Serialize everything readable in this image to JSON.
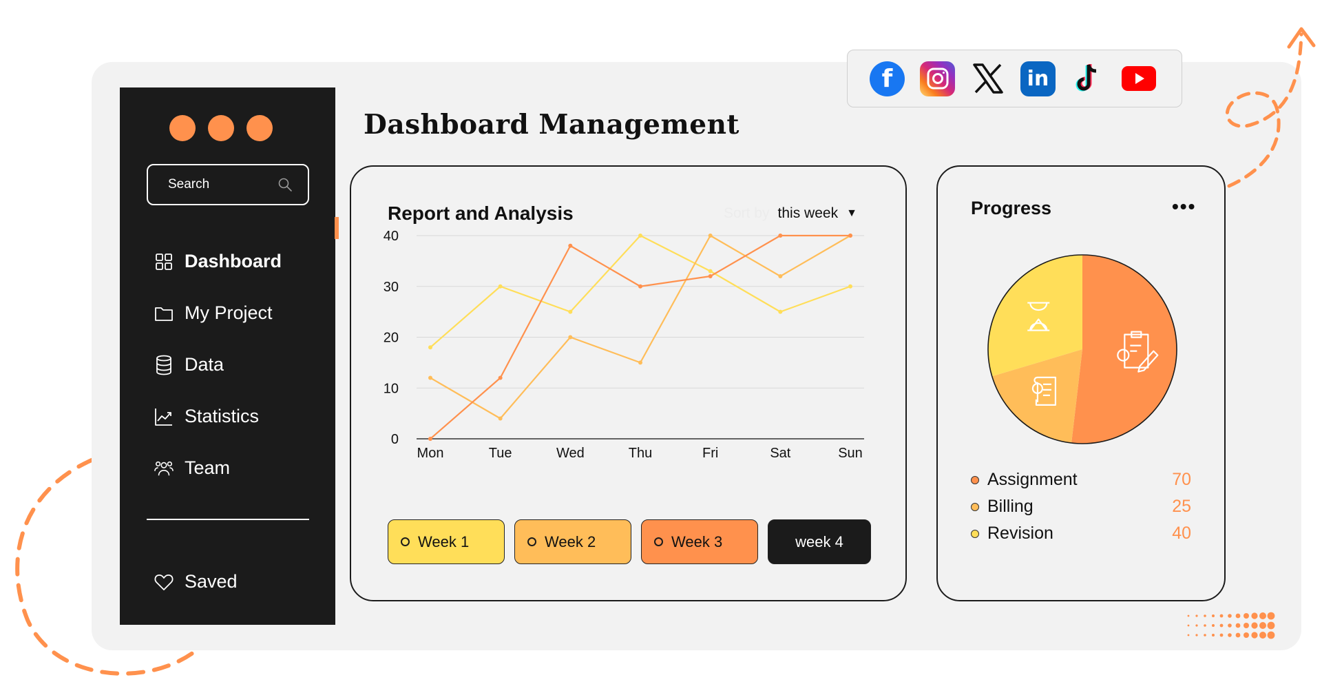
{
  "header": {
    "title": "Dashboard  Management"
  },
  "colors": {
    "accent": "#ff914d",
    "yellow": "#ffde59",
    "light_orange": "#ffbd59",
    "dark": "#1b1b1b",
    "panel": "#f2f2f2"
  },
  "sidebar": {
    "window_dots": 3,
    "search": {
      "placeholder": "Search",
      "icon": "search-icon"
    },
    "items": [
      {
        "label": "Dashboard",
        "icon": "grid-icon",
        "active": true
      },
      {
        "label": "My Project",
        "icon": "folder-icon"
      },
      {
        "label": "Data",
        "icon": "database-icon"
      },
      {
        "label": "Statistics",
        "icon": "chart-line-icon"
      },
      {
        "label": "Team",
        "icon": "users-icon"
      }
    ],
    "saved": {
      "label": "Saved",
      "icon": "heart-icon"
    }
  },
  "social": [
    "facebook-icon",
    "instagram-icon",
    "x-icon",
    "linkedin-icon",
    "tiktok-icon",
    "youtube-icon"
  ],
  "report": {
    "title": "Report and Analysis",
    "sort_prefix": "Sort by",
    "sort_value": "this week",
    "buttons": [
      {
        "label": "Week 1",
        "color": "#ffde59"
      },
      {
        "label": "Week 2",
        "color": "#ffbd59"
      },
      {
        "label": "Week 3",
        "color": "#ff914d"
      },
      {
        "label": "week 4",
        "color": "#1b1b1b"
      }
    ]
  },
  "chart_data": {
    "type": "line",
    "title": "Report and Analysis",
    "categories": [
      "Mon",
      "Tue",
      "Wed",
      "Thu",
      "Fri",
      "Sat",
      "Sun"
    ],
    "ylim": [
      0,
      40
    ],
    "yticks": [
      0,
      10,
      20,
      30,
      40
    ],
    "grid": true,
    "series": [
      {
        "color": "#ffde59",
        "values": [
          18,
          30,
          25,
          40,
          33,
          25,
          30
        ]
      },
      {
        "color": "#ffbd59",
        "values": [
          12,
          4,
          20,
          15,
          40,
          32,
          40
        ]
      },
      {
        "color": "#ff914d",
        "values": [
          0,
          12,
          38,
          30,
          32,
          40,
          40
        ]
      }
    ]
  },
  "progress": {
    "title": "Progress",
    "menu_icon": "more-horizontal-icon",
    "pie": [
      {
        "label": "Assignment",
        "value": 70,
        "color": "#ff914d",
        "icon": "clipboard-gear-icon"
      },
      {
        "label": "Billing",
        "value": 25,
        "color": "#ffbd59",
        "icon": "invoice-icon"
      },
      {
        "label": "Revision",
        "value": 40,
        "color": "#ffde59",
        "icon": "hourglass-icon"
      }
    ],
    "legend": [
      {
        "label": "Assignment",
        "value": "70",
        "color": "#ff914d"
      },
      {
        "label": "Billing",
        "value": "25",
        "color": "#ffbd59"
      },
      {
        "label": "Revision",
        "value": "40",
        "color": "#ffde59"
      }
    ]
  }
}
